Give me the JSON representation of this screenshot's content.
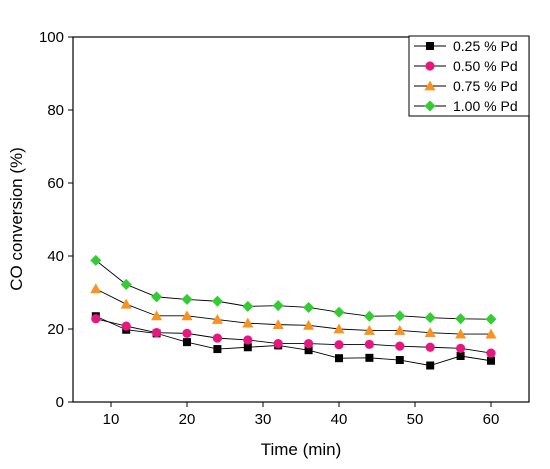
{
  "chart_data": {
    "type": "line",
    "xlabel": "Time (min)",
    "ylabel": "CO conversion (%)",
    "xlim": [
      5,
      65
    ],
    "ylim": [
      0,
      100
    ],
    "x_ticks": [
      10,
      20,
      30,
      40,
      50,
      60
    ],
    "y_ticks": [
      0,
      20,
      40,
      60,
      80,
      100
    ],
    "grid": false,
    "legend_position": "top-right",
    "x": [
      8,
      12,
      16,
      20,
      24,
      28,
      32,
      36,
      40,
      44,
      48,
      52,
      56,
      60
    ],
    "series": [
      {
        "name": "0.25 % Pd",
        "marker": "square",
        "color": "#000000",
        "values": [
          23.5,
          19.8,
          18.8,
          16.4,
          14.5,
          15.0,
          15.5,
          14.2,
          12.0,
          12.1,
          11.5,
          10.0,
          12.6,
          11.3
        ]
      },
      {
        "name": "0.50 % Pd",
        "marker": "circle",
        "color": "#e8177f",
        "values": [
          22.8,
          20.8,
          19.0,
          18.8,
          17.5,
          17.0,
          16.0,
          16.0,
          15.7,
          15.8,
          15.3,
          15.0,
          14.7,
          13.4
        ]
      },
      {
        "name": "0.75 % Pd",
        "marker": "triangle",
        "color": "#f7931e",
        "values": [
          31.0,
          26.8,
          23.6,
          23.6,
          22.6,
          21.6,
          21.2,
          21.0,
          20.0,
          19.6,
          19.6,
          19.0,
          18.6,
          18.6
        ]
      },
      {
        "name": "1.00 % Pd",
        "marker": "diamond",
        "color": "#33cc33",
        "values": [
          38.8,
          32.2,
          28.8,
          28.1,
          27.6,
          26.2,
          26.4,
          25.9,
          24.6,
          23.5,
          23.6,
          23.1,
          22.8,
          22.7
        ]
      }
    ]
  }
}
